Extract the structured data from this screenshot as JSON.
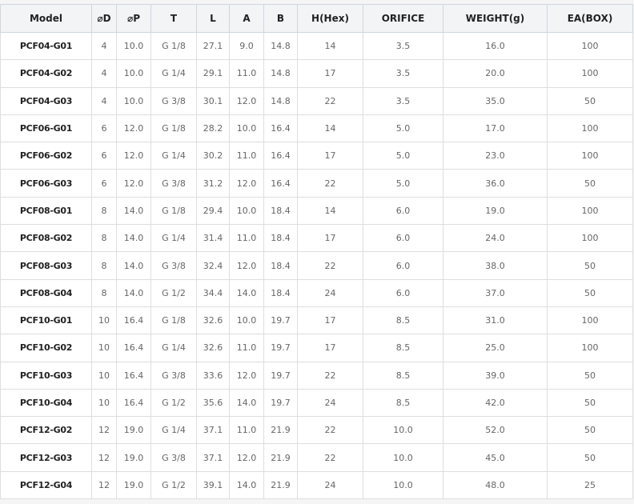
{
  "headers": [
    "Model",
    "⌀D",
    "⌀P",
    "T",
    "L",
    "A",
    "B",
    "H(Hex)",
    "ORIFICE",
    "WEIGHT(g)",
    "EA(BOX)"
  ],
  "rows": [
    [
      "PCF04-G01",
      "4",
      "10.0",
      "G 1/8",
      "27.1",
      "9.0",
      "14.8",
      "14",
      "3.5",
      "16.0",
      "100"
    ],
    [
      "PCF04-G02",
      "4",
      "10.0",
      "G 1/4",
      "29.1",
      "11.0",
      "14.8",
      "17",
      "3.5",
      "20.0",
      "100"
    ],
    [
      "PCF04-G03",
      "4",
      "10.0",
      "G 3/8",
      "30.1",
      "12.0",
      "14.8",
      "22",
      "3.5",
      "35.0",
      "50"
    ],
    [
      "PCF06-G01",
      "6",
      "12.0",
      "G 1/8",
      "28.2",
      "10.0",
      "16.4",
      "14",
      "5.0",
      "17.0",
      "100"
    ],
    [
      "PCF06-G02",
      "6",
      "12.0",
      "G 1/4",
      "30.2",
      "11.0",
      "16.4",
      "17",
      "5.0",
      "23.0",
      "100"
    ],
    [
      "PCF06-G03",
      "6",
      "12.0",
      "G 3/8",
      "31.2",
      "12.0",
      "16.4",
      "22",
      "5.0",
      "36.0",
      "50"
    ],
    [
      "PCF08-G01",
      "8",
      "14.0",
      "G 1/8",
      "29.4",
      "10.0",
      "18.4",
      "14",
      "6.0",
      "19.0",
      "100"
    ],
    [
      "PCF08-G02",
      "8",
      "14.0",
      "G 1/4",
      "31.4",
      "11.0",
      "18.4",
      "17",
      "6.0",
      "24.0",
      "100"
    ],
    [
      "PCF08-G03",
      "8",
      "14.0",
      "G 3/8",
      "32.4",
      "12.0",
      "18.4",
      "22",
      "6.0",
      "38.0",
      "50"
    ],
    [
      "PCF08-G04",
      "8",
      "14.0",
      "G 1/2",
      "34.4",
      "14.0",
      "18.4",
      "24",
      "6.0",
      "37.0",
      "50"
    ],
    [
      "PCF10-G01",
      "10",
      "16.4",
      "G 1/8",
      "32.6",
      "10.0",
      "19.7",
      "17",
      "8.5",
      "31.0",
      "100"
    ],
    [
      "PCF10-G02",
      "10",
      "16.4",
      "G 1/4",
      "32.6",
      "11.0",
      "19.7",
      "17",
      "8.5",
      "25.0",
      "100"
    ],
    [
      "PCF10-G03",
      "10",
      "16.4",
      "G 3/8",
      "33.6",
      "12.0",
      "19.7",
      "22",
      "8.5",
      "39.0",
      "50"
    ],
    [
      "PCF10-G04",
      "10",
      "16.4",
      "G 1/2",
      "35.6",
      "14.0",
      "19.7",
      "24",
      "8.5",
      "42.0",
      "50"
    ],
    [
      "PCF12-G02",
      "12",
      "19.0",
      "G 1/4",
      "37.1",
      "11.0",
      "21.9",
      "22",
      "10.0",
      "52.0",
      "50"
    ],
    [
      "PCF12-G03",
      "12",
      "19.0",
      "G 3/8",
      "37.1",
      "12.0",
      "21.9",
      "22",
      "10.0",
      "45.0",
      "50"
    ],
    [
      "PCF12-G04",
      "12",
      "19.0",
      "G 1/2",
      "39.1",
      "14.0",
      "21.9",
      "24",
      "10.0",
      "48.0",
      "25"
    ]
  ]
}
